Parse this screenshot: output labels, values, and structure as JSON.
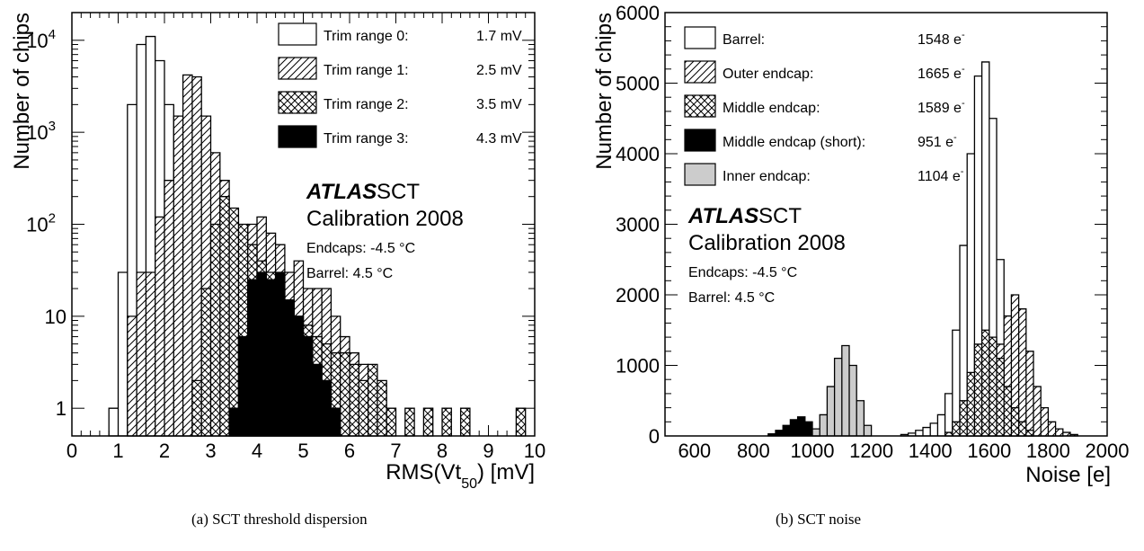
{
  "chart_data": [
    {
      "type": "histogram",
      "yscale": "log",
      "xlim": [
        0,
        10
      ],
      "ylim": [
        0.5,
        20000
      ],
      "xticks": [
        "0",
        "1",
        "2",
        "3",
        "4",
        "5",
        "6",
        "7",
        "8",
        "9",
        "10"
      ],
      "xtick_values": [
        0,
        1,
        2,
        3,
        4,
        5,
        6,
        7,
        8,
        9,
        10
      ],
      "yticks": [
        {
          "value": 1,
          "label": "1"
        },
        {
          "value": 10,
          "label": "10"
        },
        {
          "value": 100,
          "label": "10",
          "sup": "2"
        },
        {
          "value": 1000,
          "label": "10",
          "sup": "3"
        },
        {
          "value": 10000,
          "label": "10",
          "sup": "4"
        }
      ],
      "ylabel": "Number of chips",
      "xlabel": {
        "main": "RMS(Vt",
        "sub": "50",
        "end": ") [mV]"
      },
      "bin_width": 0.2,
      "series": [
        {
          "name": "Trim range 0:",
          "value_label": "1.7 mV",
          "fill": "white",
          "bins": [
            [
              0.8,
              1
            ],
            [
              1.0,
              30
            ],
            [
              1.2,
              2000
            ],
            [
              1.4,
              9000
            ],
            [
              1.6,
              11000
            ],
            [
              1.8,
              6000
            ],
            [
              2.0,
              2000
            ],
            [
              2.2,
              200
            ],
            [
              2.4,
              20
            ],
            [
              2.6,
              3
            ]
          ]
        },
        {
          "name": "Trim range 1:",
          "value_label": "2.5 mV",
          "fill": "hatch-diag",
          "bins": [
            [
              1.2,
              10
            ],
            [
              1.4,
              30
            ],
            [
              1.6,
              30
            ],
            [
              1.8,
              120
            ],
            [
              2.0,
              300
            ],
            [
              2.2,
              1500
            ],
            [
              2.4,
              4200
            ],
            [
              2.6,
              4000
            ],
            [
              2.8,
              1500
            ],
            [
              3.0,
              600
            ],
            [
              3.2,
              300
            ],
            [
              3.4,
              120
            ],
            [
              3.6,
              60
            ],
            [
              3.8,
              100
            ],
            [
              4.0,
              120
            ],
            [
              4.2,
              80
            ],
            [
              4.4,
              60
            ],
            [
              4.6,
              30
            ],
            [
              4.8,
              40
            ],
            [
              5.0,
              20
            ],
            [
              5.2,
              20
            ],
            [
              5.4,
              20
            ],
            [
              5.6,
              10
            ],
            [
              5.8,
              6
            ],
            [
              6.0,
              4
            ],
            [
              6.2,
              3
            ],
            [
              6.4,
              2
            ]
          ]
        },
        {
          "name": "Trim range 2:",
          "value_label": "3.5 mV",
          "fill": "hatch-cross",
          "bins": [
            [
              2.6,
              2
            ],
            [
              2.8,
              20
            ],
            [
              3.0,
              100
            ],
            [
              3.2,
              200
            ],
            [
              3.4,
              150
            ],
            [
              3.6,
              100
            ],
            [
              3.8,
              60
            ],
            [
              4.0,
              40
            ],
            [
              4.2,
              30
            ],
            [
              4.4,
              20
            ],
            [
              4.6,
              15
            ],
            [
              4.8,
              10
            ],
            [
              5.0,
              8
            ],
            [
              5.2,
              6
            ],
            [
              5.4,
              5
            ],
            [
              5.6,
              4
            ],
            [
              5.8,
              4
            ],
            [
              6.0,
              3
            ],
            [
              6.2,
              2
            ],
            [
              6.4,
              3
            ],
            [
              6.6,
              2
            ],
            [
              6.8,
              1
            ],
            [
              7.2,
              1
            ],
            [
              7.6,
              1
            ],
            [
              8.0,
              1
            ],
            [
              8.4,
              1
            ],
            [
              9.6,
              1
            ]
          ]
        },
        {
          "name": "Trim range 3:",
          "value_label": "4.3 mV",
          "fill": "black",
          "bins": [
            [
              3.4,
              1
            ],
            [
              3.6,
              6
            ],
            [
              3.8,
              25
            ],
            [
              4.0,
              30
            ],
            [
              4.2,
              25
            ],
            [
              4.4,
              30
            ],
            [
              4.6,
              15
            ],
            [
              4.8,
              10
            ],
            [
              5.0,
              6
            ],
            [
              5.2,
              3
            ],
            [
              5.4,
              2
            ],
            [
              5.6,
              1
            ]
          ]
        }
      ],
      "annotations": {
        "atlas": "ATLAS",
        "sct": "SCT",
        "calib": "Calibration 2008",
        "endcaps": "Endcaps: -4.5 °C",
        "barrel": "Barrel: 4.5 °C"
      },
      "caption": "(a) SCT threshold dispersion"
    },
    {
      "type": "histogram",
      "yscale": "linear",
      "xlim": [
        500,
        2000
      ],
      "ylim": [
        0,
        6000
      ],
      "xticks": [
        "600",
        "800",
        "1000",
        "1200",
        "1400",
        "1600",
        "1800",
        "2000"
      ],
      "xtick_values": [
        600,
        800,
        1000,
        1200,
        1400,
        1600,
        1800,
        2000
      ],
      "yticks": [
        {
          "value": 0,
          "label": "0"
        },
        {
          "value": 1000,
          "label": "1000"
        },
        {
          "value": 2000,
          "label": "2000"
        },
        {
          "value": 3000,
          "label": "3000"
        },
        {
          "value": 4000,
          "label": "4000"
        },
        {
          "value": 5000,
          "label": "5000"
        },
        {
          "value": 6000,
          "label": "6000"
        }
      ],
      "ylabel": "Number of chips",
      "xlabel": "Noise [e]",
      "bin_width": 25,
      "series": [
        {
          "name": "Barrel:",
          "value_label": "1548 e",
          "value_sup": "-",
          "fill": "white",
          "bins": [
            [
              1300,
              20
            ],
            [
              1325,
              40
            ],
            [
              1350,
              80
            ],
            [
              1375,
              120
            ],
            [
              1400,
              180
            ],
            [
              1425,
              300
            ],
            [
              1450,
              600
            ],
            [
              1475,
              1500
            ],
            [
              1500,
              2700
            ],
            [
              1525,
              4000
            ],
            [
              1550,
              5100
            ],
            [
              1575,
              5300
            ],
            [
              1600,
              4500
            ],
            [
              1625,
              2500
            ],
            [
              1650,
              1300
            ],
            [
              1675,
              700
            ],
            [
              1700,
              350
            ],
            [
              1725,
              200
            ],
            [
              1750,
              120
            ],
            [
              1775,
              60
            ],
            [
              1800,
              30
            ],
            [
              1825,
              15
            ]
          ]
        },
        {
          "name": "Outer endcap:",
          "value_label": "1665 e",
          "value_sup": "-",
          "fill": "hatch-diag",
          "bins": [
            [
              1525,
              100
            ],
            [
              1550,
              250
            ],
            [
              1575,
              500
            ],
            [
              1600,
              900
            ],
            [
              1625,
              1300
            ],
            [
              1650,
              1700
            ],
            [
              1675,
              2000
            ],
            [
              1700,
              1800
            ],
            [
              1725,
              1200
            ],
            [
              1750,
              700
            ],
            [
              1775,
              400
            ],
            [
              1800,
              200
            ],
            [
              1825,
              100
            ],
            [
              1850,
              50
            ],
            [
              1875,
              20
            ]
          ]
        },
        {
          "name": "Middle endcap:",
          "value_label": "1589 e",
          "value_sup": "-",
          "fill": "hatch-cross",
          "bins": [
            [
              1450,
              50
            ],
            [
              1475,
              200
            ],
            [
              1500,
              500
            ],
            [
              1525,
              900
            ],
            [
              1550,
              1300
            ],
            [
              1575,
              1500
            ],
            [
              1600,
              1400
            ],
            [
              1625,
              1100
            ],
            [
              1650,
              700
            ],
            [
              1675,
              400
            ],
            [
              1700,
              200
            ],
            [
              1725,
              80
            ]
          ]
        },
        {
          "name": "Middle endcap (short):",
          "value_label": "951 e",
          "value_sup": "-",
          "fill": "black",
          "bins": [
            [
              850,
              30
            ],
            [
              875,
              80
            ],
            [
              900,
              150
            ],
            [
              925,
              230
            ],
            [
              950,
              270
            ],
            [
              975,
              200
            ],
            [
              1000,
              80
            ]
          ]
        },
        {
          "name": "Inner endcap:",
          "value_label": "1104 e",
          "value_sup": "-",
          "fill": "gray",
          "bins": [
            [
              1000,
              100
            ],
            [
              1025,
              300
            ],
            [
              1050,
              700
            ],
            [
              1075,
              1100
            ],
            [
              1100,
              1280
            ],
            [
              1125,
              1000
            ],
            [
              1150,
              500
            ],
            [
              1175,
              150
            ]
          ]
        }
      ],
      "annotations": {
        "atlas": "ATLAS",
        "sct": "SCT",
        "calib": "Calibration 2008",
        "endcaps": "Endcaps: -4.5 °C",
        "barrel": "Barrel: 4.5 °C"
      },
      "caption": "(b) SCT noise"
    }
  ]
}
